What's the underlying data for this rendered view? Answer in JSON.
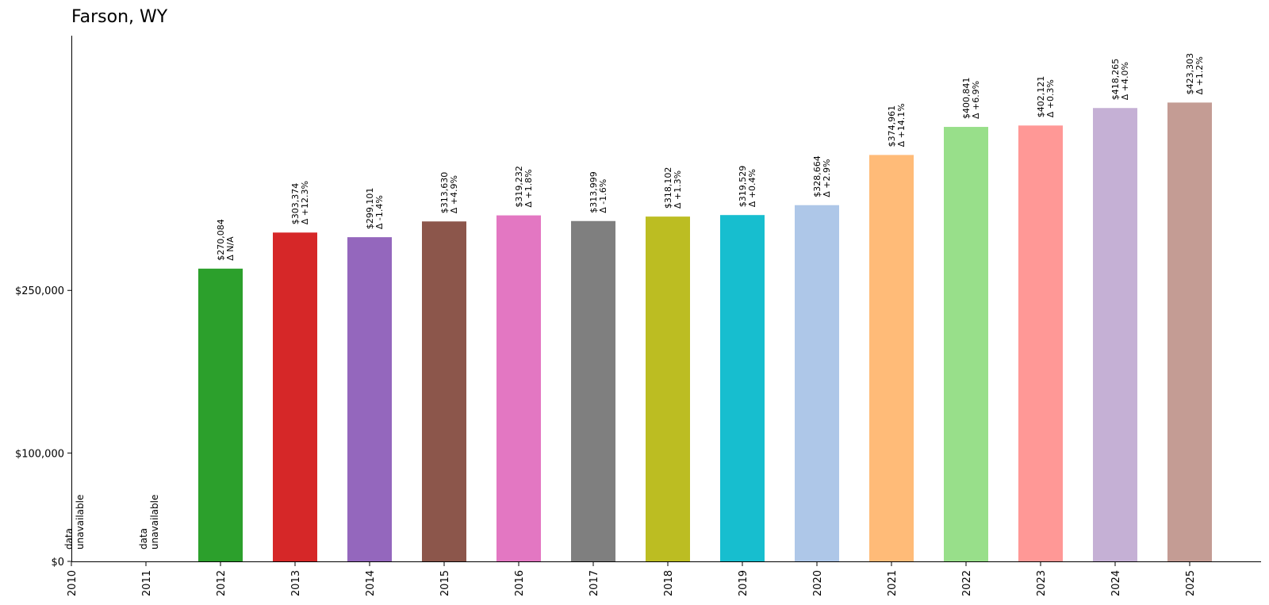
{
  "chart_data": {
    "type": "bar",
    "title": "Farson, WY",
    "xlabel": "",
    "ylabel": "",
    "grid": false,
    "legend": "none",
    "ylim": [
      0,
      485000
    ],
    "y_ticks": [
      {
        "value": 0,
        "label": "$0"
      },
      {
        "value": 100000,
        "label": "$100,000"
      },
      {
        "value": 250000,
        "label": "$250,000"
      }
    ],
    "categories": [
      "2010",
      "2011",
      "2012",
      "2013",
      "2014",
      "2015",
      "2016",
      "2017",
      "2018",
      "2019",
      "2020",
      "2021",
      "2022",
      "2023",
      "2024",
      "2025"
    ],
    "values": [
      null,
      null,
      270084,
      303374,
      299101,
      313630,
      319232,
      313999,
      318102,
      319529,
      328664,
      374961,
      400841,
      402121,
      418265,
      423303
    ],
    "value_labels": [
      "",
      "",
      "$270,084",
      "$303,374",
      "$299,101",
      "$313,630",
      "$319,232",
      "$313,999",
      "$318,102",
      "$319,529",
      "$328,664",
      "$374,961",
      "$400,841",
      "$402,121",
      "$418,265",
      "$423,303"
    ],
    "change_labels": [
      "",
      "",
      "Δ N/A",
      "Δ +12.3%",
      "Δ -1.4%",
      "Δ +4.9%",
      "Δ +1.8%",
      "Δ -1.6%",
      "Δ +1.3%",
      "Δ +0.4%",
      "Δ +2.9%",
      "Δ +14.1%",
      "Δ +6.9%",
      "Δ +0.3%",
      "Δ +4.0%",
      "Δ +1.2%"
    ],
    "missing_label": [
      "data",
      "unavailable"
    ],
    "colors": [
      "#2ca02c",
      "#2ca02c",
      "#2ca02c",
      "#d62728",
      "#9467bd",
      "#8c564b",
      "#e377c2",
      "#7f7f7f",
      "#bcbd22",
      "#17becf",
      "#aec7e8",
      "#ffbb78",
      "#98df8a",
      "#ff9896",
      "#c5b0d5",
      "#c49c94"
    ]
  }
}
